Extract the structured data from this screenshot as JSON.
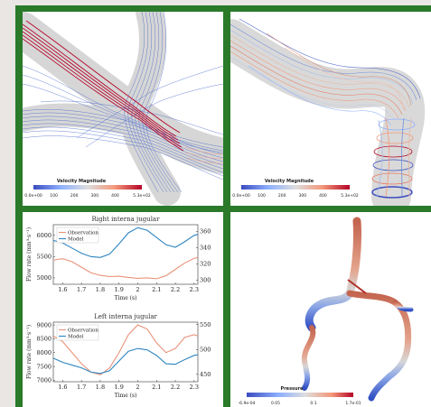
{
  "colorbars": {
    "velocity_left": {
      "title": "Velocity Magnitude",
      "ticks": [
        "0.0e+00",
        "100",
        "200",
        "300",
        "400",
        "5.3e+02"
      ]
    },
    "velocity_right": {
      "title": "Velocity Magnitude",
      "ticks": [
        "0.0e+00",
        "100",
        "200",
        "300",
        "400",
        "5.3e+02"
      ]
    },
    "pressure": {
      "title": "Pressure",
      "ticks": [
        "-6.9e-04",
        "0.05",
        "0.1",
        "1.7e-01"
      ]
    }
  },
  "colors": {
    "observation": "#e8937a",
    "model": "#2e86c1",
    "frame": "#2a7a2a",
    "cold": "#3b4cc0",
    "hot": "#b40426"
  },
  "chart_data": [
    {
      "type": "line",
      "title": "Right interna jugular",
      "xlabel": "Time (s)",
      "ylabel_left": "Flow rate (mm³·s⁻¹)",
      "ylabel_right": "",
      "xlim": [
        1.55,
        2.32
      ],
      "ylim_left": [
        4850,
        6250
      ],
      "ylim_right": [
        295,
        368
      ],
      "xticks": [
        "1.6",
        "1.7",
        "1.8",
        "1.9",
        "2",
        "2.1",
        "2.2",
        "2.3"
      ],
      "yticks_left": [
        "5000",
        "5500",
        "6000"
      ],
      "yticks_right": [
        "300",
        "320",
        "340",
        "360"
      ],
      "legend_position": "top-left",
      "series": [
        {
          "name": "Observation",
          "axis": "left",
          "x": [
            1.55,
            1.6,
            1.65,
            1.7,
            1.75,
            1.8,
            1.85,
            1.9,
            1.95,
            2.0,
            2.05,
            2.1,
            2.15,
            2.2,
            2.25,
            2.3,
            2.32
          ],
          "y": [
            5420,
            5450,
            5380,
            5250,
            5120,
            5060,
            5030,
            5040,
            5010,
            4990,
            5000,
            4980,
            5050,
            5200,
            5350,
            5460,
            5480
          ]
        },
        {
          "name": "Model",
          "axis": "left",
          "x": [
            1.55,
            1.6,
            1.65,
            1.7,
            1.75,
            1.8,
            1.85,
            1.9,
            1.95,
            2.0,
            2.05,
            2.1,
            2.15,
            2.2,
            2.25,
            2.3,
            2.32
          ],
          "y": [
            5880,
            5820,
            5700,
            5580,
            5500,
            5480,
            5560,
            5800,
            6060,
            6180,
            6120,
            5950,
            5780,
            5720,
            5850,
            6000,
            6020
          ]
        }
      ]
    },
    {
      "type": "line",
      "title": "Left interna jugular",
      "xlabel": "Time (s)",
      "ylabel_left": "Flow rate (mm³·s⁻¹)",
      "ylabel_right": "",
      "xlim": [
        1.55,
        2.32
      ],
      "ylim_left": [
        6950,
        9100
      ],
      "ylim_right": [
        435,
        555
      ],
      "xticks": [
        "1.6",
        "1.7",
        "1.8",
        "1.9",
        "2",
        "2.1",
        "2.2",
        "2.3"
      ],
      "yticks_left": [
        "7000",
        "7500",
        "8000",
        "8500",
        "9000"
      ],
      "yticks_right": [
        "450",
        "500",
        "550"
      ],
      "legend_position": "top-left",
      "series": [
        {
          "name": "Observation",
          "axis": "left",
          "x": [
            1.55,
            1.6,
            1.65,
            1.7,
            1.75,
            1.8,
            1.85,
            1.9,
            1.95,
            2.0,
            2.05,
            2.1,
            2.15,
            2.2,
            2.25,
            2.3,
            2.32
          ],
          "y": [
            8600,
            8400,
            8000,
            7600,
            7300,
            7200,
            7450,
            8000,
            8650,
            9000,
            8850,
            8350,
            8000,
            8150,
            8550,
            8650,
            8600
          ]
        },
        {
          "name": "Model",
          "axis": "left",
          "x": [
            1.55,
            1.6,
            1.65,
            1.7,
            1.75,
            1.8,
            1.85,
            1.9,
            1.95,
            2.0,
            2.05,
            2.1,
            2.15,
            2.2,
            2.25,
            2.3,
            2.32
          ],
          "y": [
            7800,
            7650,
            7550,
            7450,
            7300,
            7250,
            7350,
            7700,
            8050,
            8150,
            8100,
            7900,
            7600,
            7580,
            7750,
            7900,
            7920
          ]
        }
      ]
    }
  ]
}
